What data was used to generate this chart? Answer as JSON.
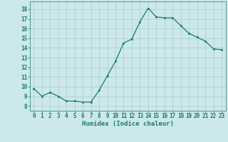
{
  "x": [
    0,
    1,
    2,
    3,
    4,
    5,
    6,
    7,
    8,
    9,
    10,
    11,
    12,
    13,
    14,
    15,
    16,
    17,
    18,
    19,
    20,
    21,
    22,
    23
  ],
  "y": [
    9.8,
    9.0,
    9.4,
    9.0,
    8.5,
    8.5,
    8.4,
    8.4,
    9.6,
    11.1,
    12.6,
    14.5,
    14.9,
    16.7,
    18.1,
    17.2,
    17.1,
    17.1,
    16.3,
    15.5,
    15.1,
    14.7,
    13.9,
    13.8
  ],
  "line_color": "#1a7a6e",
  "marker_color": "#1a7a6e",
  "bg_color": "#cce8ea",
  "grid_color": "#aacccc",
  "xlabel": "Humidex (Indice chaleur)",
  "xlabel_fontsize": 6.5,
  "xlabel_weight": "bold",
  "xlabel_color": "#1a7a6e",
  "tick_color": "#1a7a6e",
  "ylim": [
    7.5,
    18.8
  ],
  "xlim": [
    -0.5,
    23.5
  ],
  "yticks": [
    8,
    9,
    10,
    11,
    12,
    13,
    14,
    15,
    16,
    17,
    18
  ],
  "xticks": [
    0,
    1,
    2,
    3,
    4,
    5,
    6,
    7,
    8,
    9,
    10,
    11,
    12,
    13,
    14,
    15,
    16,
    17,
    18,
    19,
    20,
    21,
    22,
    23
  ],
  "tick_fontsize": 5.5
}
